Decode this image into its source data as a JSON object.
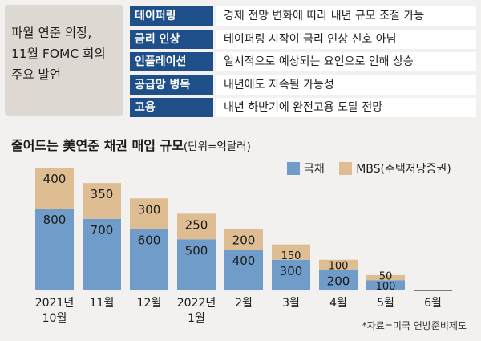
{
  "summary": {
    "text": "파월 연준 의장,\n11월 FOMC 회의\n주요 발언"
  },
  "remarks": [
    {
      "topic": "테이퍼링",
      "text": "경제 전망 변화에 따라 내년 규모 조절 가능"
    },
    {
      "topic": "금리 인상",
      "text": "테이퍼링 시작이 금리 인상 신호 아님"
    },
    {
      "topic": "인플레이션",
      "text": "일시적으로 예상되는 요인으로 인해 상승"
    },
    {
      "topic": "공급망 병목",
      "text": "내년에도 지속될 가능성"
    },
    {
      "topic": "고용",
      "text": "내년 하반기에 완전고용 도달 전망"
    }
  ],
  "colors": {
    "treasury": "#6f9cc9",
    "mbs": "#dfbd92",
    "key_bg": "#1f4f88"
  },
  "source": "*자료=미국 연방준비제도",
  "chart_data": {
    "type": "bar",
    "stacked": true,
    "title": "줄어드는 美연준 채권 매입 규모",
    "unit": "(단위=억달러)",
    "categories": [
      "2021년\n10월",
      "11월",
      "12월",
      "2022년\n1월",
      "2월",
      "3월",
      "4월",
      "5월",
      "6월"
    ],
    "series": [
      {
        "name": "국채",
        "values": [
          800,
          700,
          600,
          500,
          400,
          300,
          200,
          100,
          0
        ]
      },
      {
        "name": "MBS(주택저당증권)",
        "values": [
          400,
          350,
          300,
          250,
          200,
          150,
          100,
          50,
          0
        ]
      }
    ],
    "ylim": [
      0,
      1200
    ],
    "legend": "top-right",
    "grid": false
  }
}
